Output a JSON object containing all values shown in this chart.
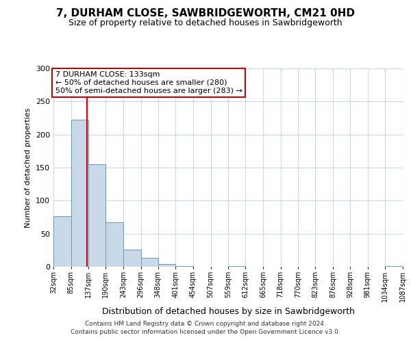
{
  "title": "7, DURHAM CLOSE, SAWBRIDGEWORTH, CM21 0HD",
  "subtitle": "Size of property relative to detached houses in Sawbridgeworth",
  "xlabel": "Distribution of detached houses by size in Sawbridgeworth",
  "ylabel": "Number of detached properties",
  "bin_edges": [
    32,
    85,
    137,
    190,
    243,
    296,
    348,
    401,
    454,
    507,
    559,
    612,
    665,
    718,
    770,
    823,
    876,
    928,
    981,
    1034,
    1087
  ],
  "bin_labels": [
    "32sqm",
    "85sqm",
    "137sqm",
    "190sqm",
    "243sqm",
    "296sqm",
    "348sqm",
    "401sqm",
    "454sqm",
    "507sqm",
    "559sqm",
    "612sqm",
    "665sqm",
    "718sqm",
    "770sqm",
    "823sqm",
    "876sqm",
    "928sqm",
    "981sqm",
    "1034sqm",
    "1087sqm"
  ],
  "counts": [
    77,
    222,
    155,
    67,
    26,
    13,
    4,
    1,
    0,
    0,
    1,
    0,
    0,
    0,
    0,
    0,
    0,
    0,
    0,
    1
  ],
  "bar_color": "#c9d9e8",
  "bar_edge_color": "#5f9bc4",
  "vline_x": 133,
  "vline_color": "#cc0000",
  "ylim": [
    0,
    300
  ],
  "yticks": [
    0,
    50,
    100,
    150,
    200,
    250,
    300
  ],
  "annotation_title": "7 DURHAM CLOSE: 133sqm",
  "annotation_line1": "← 50% of detached houses are smaller (280)",
  "annotation_line2": "50% of semi-detached houses are larger (283) →",
  "annotation_box_color": "#ffffff",
  "annotation_box_edge": "#cc0000",
  "footer1": "Contains HM Land Registry data © Crown copyright and database right 2024.",
  "footer2": "Contains public sector information licensed under the Open Government Licence v3.0.",
  "background_color": "#ffffff",
  "grid_color": "#c8d8e8"
}
